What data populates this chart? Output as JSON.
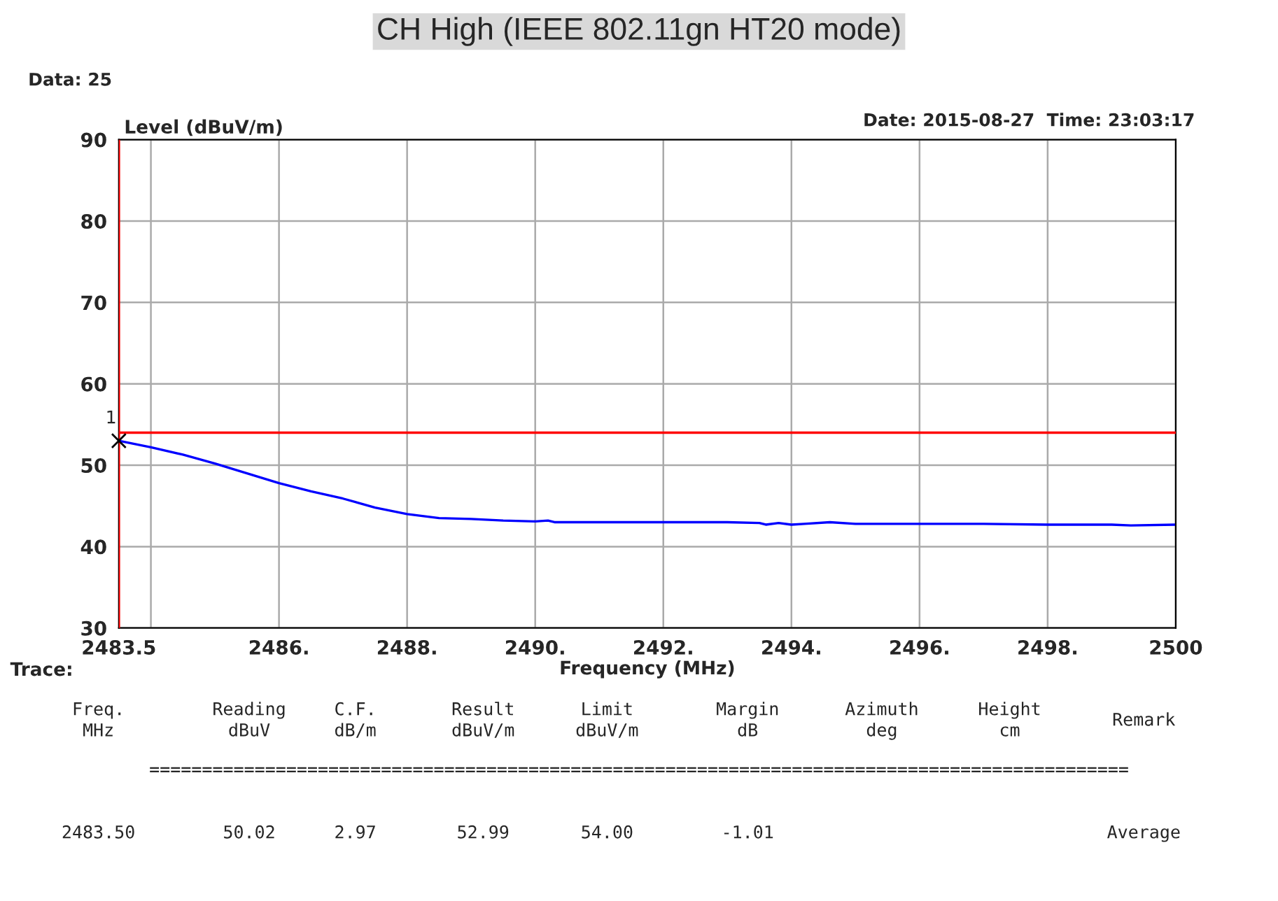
{
  "chart_data": {
    "type": "line",
    "title": "CH High (IEEE 802.11gn HT20 mode)",
    "xlabel": "Frequency (MHz)",
    "ylabel": "Level (dBuV/m)",
    "x": [
      2483.5,
      2484,
      2484.5,
      2485,
      2485.5,
      2486,
      2486.5,
      2487,
      2487.5,
      2488,
      2488.5,
      2489,
      2489.5,
      2490,
      2490.2,
      2490.3,
      2491,
      2492,
      2493,
      2493.5,
      2493.6,
      2493.8,
      2494,
      2494.2,
      2494.6,
      2495,
      2496,
      2497,
      2498,
      2499,
      2499.3,
      2500
    ],
    "series": [
      {
        "color": "#0000ff",
        "values": [
          53.0,
          52.2,
          51.3,
          50.2,
          49.0,
          47.8,
          46.8,
          45.9,
          44.8,
          44.0,
          43.5,
          43.4,
          43.2,
          43.1,
          43.2,
          43.0,
          43.0,
          43.0,
          43.0,
          42.9,
          42.7,
          42.9,
          42.7,
          42.8,
          43.0,
          42.8,
          42.8,
          42.8,
          42.7,
          42.7,
          42.6,
          42.7
        ]
      },
      {
        "type": "scatter",
        "color": "#000000",
        "marker": "cross",
        "x": [
          2483.5
        ],
        "values": [
          53.0
        ]
      }
    ],
    "xlim": [
      2483.5,
      2500
    ],
    "ylim": [
      30,
      90
    ],
    "xticks": [
      {
        "value": 2483.5,
        "label": "2483.5"
      },
      {
        "value": 2484,
        "label": null
      },
      {
        "value": 2486,
        "label": "2486."
      },
      {
        "value": 2488,
        "label": "2488."
      },
      {
        "value": 2490,
        "label": "2490."
      },
      {
        "value": 2492,
        "label": "2492."
      },
      {
        "value": 2494,
        "label": "2494."
      },
      {
        "value": 2496,
        "label": "2496."
      },
      {
        "value": 2498,
        "label": "2498."
      },
      {
        "value": 2500,
        "label": "2500"
      }
    ],
    "yticks": [
      30,
      40,
      50,
      60,
      70,
      80,
      90
    ],
    "grid": true,
    "legend": false,
    "ref_lines": [
      {
        "axis": "y",
        "value": 54,
        "color": "#ff0000"
      },
      {
        "axis": "x",
        "value": 2483.5,
        "color": "#ff0000"
      }
    ],
    "annotations": [
      {
        "text": "1",
        "x": 2483.5,
        "y": 53.0
      },
      "Data: 25",
      "Date: 2015-08-27  Time: 23:03:17",
      "Trace:",
      "Freq.\nMHz",
      "Reading\ndBuV",
      "C.F.\ndB/m",
      "Result\ndBuV/m",
      "Limit\ndBuV/m",
      "Margin\ndB",
      "Azimuth\ndeg",
      "Height\ncm",
      "Remark",
      "=============================================================================================",
      "2483.50",
      "50.02",
      "2.97",
      "52.99",
      "54.00",
      "-1.01",
      "Average"
    ]
  }
}
